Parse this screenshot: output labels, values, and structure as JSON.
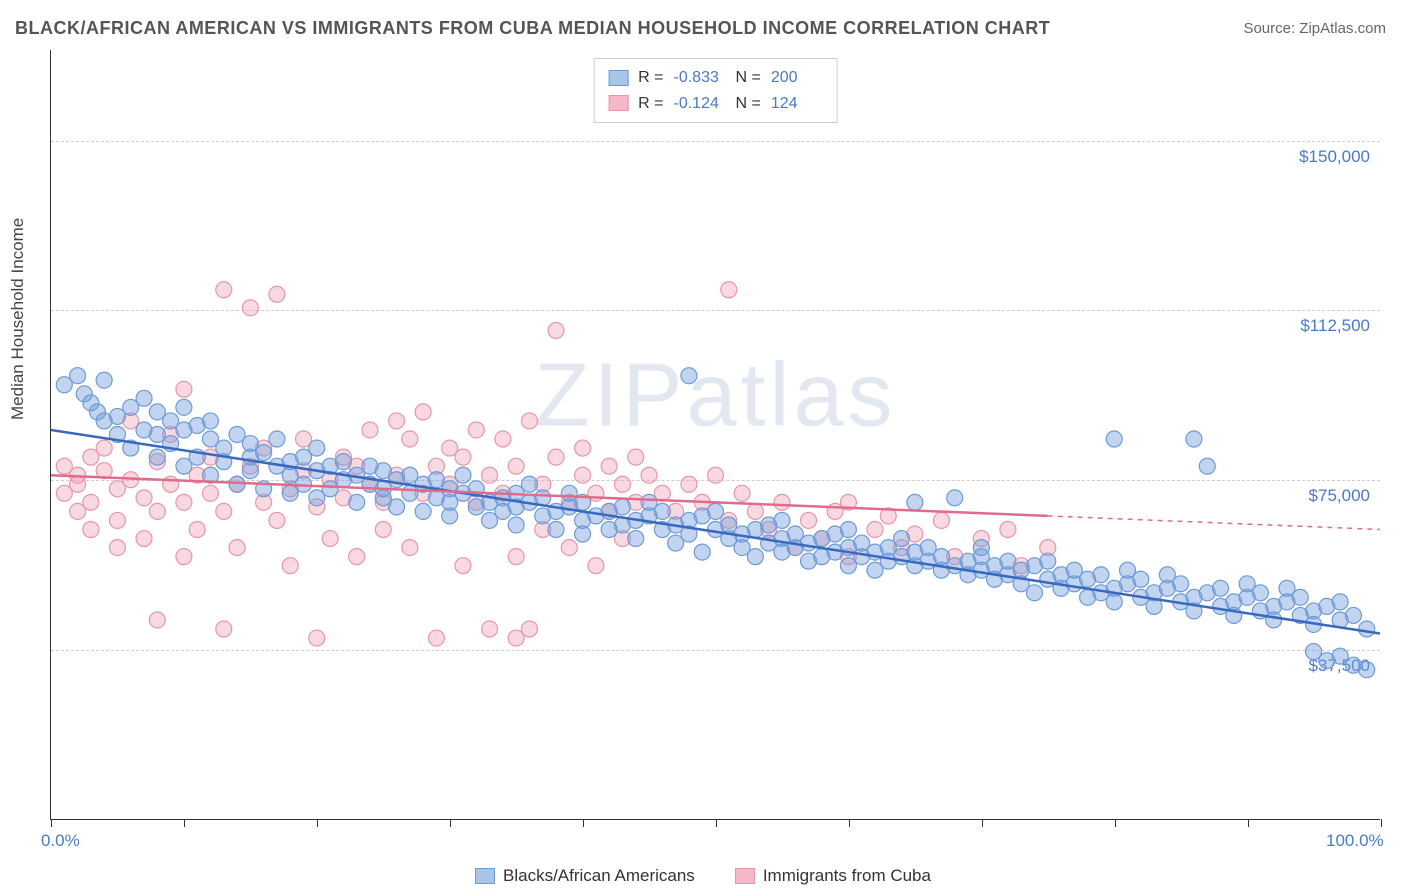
{
  "title": "BLACK/AFRICAN AMERICAN VS IMMIGRANTS FROM CUBA MEDIAN HOUSEHOLD INCOME CORRELATION CHART",
  "source": "Source: ZipAtlas.com",
  "watermark": "ZIPatlas",
  "ylabel": "Median Household Income",
  "chart": {
    "type": "scatter",
    "xlim": [
      0,
      100
    ],
    "ylim": [
      0,
      170000
    ],
    "x_tick_positions": [
      0,
      10,
      20,
      30,
      40,
      50,
      60,
      70,
      80,
      90,
      100
    ],
    "x_tick_labels_shown": {
      "0": "0.0%",
      "100": "100.0%"
    },
    "y_grid_positions": [
      37500,
      75000,
      112500,
      150000
    ],
    "y_tick_labels": {
      "37500": "$37,500",
      "75000": "$75,000",
      "112500": "$112,500",
      "150000": "$150,000"
    },
    "grid_color": "#cccccc",
    "axis_label_color": "#4a7ac7",
    "background_color": "#ffffff",
    "marker_radius": 8,
    "marker_stroke_width": 1.2,
    "trendline_width": 2.5
  },
  "series": [
    {
      "name": "Blacks/African Americans",
      "fill_color": "rgba(120,160,220,0.45)",
      "stroke_color": "#6b9bd8",
      "solid_fill": "#a8c5e8",
      "solid_stroke": "#6b9bd8",
      "line_color": "#3968c0",
      "r": "-0.833",
      "n": "200",
      "trend": {
        "x1": 0,
        "y1": 86000,
        "x2": 100,
        "y2": 41000
      },
      "points": [
        [
          1,
          96000
        ],
        [
          2,
          98000
        ],
        [
          2.5,
          94000
        ],
        [
          3,
          92000
        ],
        [
          3.5,
          90000
        ],
        [
          4,
          97000
        ],
        [
          4,
          88000
        ],
        [
          5,
          89000
        ],
        [
          5,
          85000
        ],
        [
          6,
          91000
        ],
        [
          6,
          82000
        ],
        [
          7,
          93000
        ],
        [
          7,
          86000
        ],
        [
          8,
          90000
        ],
        [
          8,
          80000
        ],
        [
          8,
          85000
        ],
        [
          9,
          88000
        ],
        [
          9,
          83000
        ],
        [
          10,
          86000
        ],
        [
          10,
          78000
        ],
        [
          10,
          91000
        ],
        [
          11,
          87000
        ],
        [
          11,
          80000
        ],
        [
          12,
          84000
        ],
        [
          12,
          76000
        ],
        [
          12,
          88000
        ],
        [
          13,
          82000
        ],
        [
          13,
          79000
        ],
        [
          14,
          85000
        ],
        [
          14,
          74000
        ],
        [
          15,
          80000
        ],
        [
          15,
          77000
        ],
        [
          15,
          83000
        ],
        [
          16,
          81000
        ],
        [
          16,
          73000
        ],
        [
          17,
          78000
        ],
        [
          17,
          84000
        ],
        [
          18,
          79000
        ],
        [
          18,
          72000
        ],
        [
          18,
          76000
        ],
        [
          19,
          80000
        ],
        [
          19,
          74000
        ],
        [
          20,
          77000
        ],
        [
          20,
          71000
        ],
        [
          20,
          82000
        ],
        [
          21,
          78000
        ],
        [
          21,
          73000
        ],
        [
          22,
          75000
        ],
        [
          22,
          79000
        ],
        [
          23,
          76000
        ],
        [
          23,
          70000
        ],
        [
          24,
          74000
        ],
        [
          24,
          78000
        ],
        [
          25,
          77000
        ],
        [
          25,
          71000
        ],
        [
          25,
          73000
        ],
        [
          26,
          75000
        ],
        [
          26,
          69000
        ],
        [
          27,
          72000
        ],
        [
          27,
          76000
        ],
        [
          28,
          74000
        ],
        [
          28,
          68000
        ],
        [
          29,
          71000
        ],
        [
          29,
          75000
        ],
        [
          30,
          73000
        ],
        [
          30,
          67000
        ],
        [
          30,
          70000
        ],
        [
          31,
          72000
        ],
        [
          31,
          76000
        ],
        [
          32,
          69000
        ],
        [
          32,
          73000
        ],
        [
          33,
          70000
        ],
        [
          33,
          66000
        ],
        [
          34,
          71000
        ],
        [
          34,
          68000
        ],
        [
          35,
          72000
        ],
        [
          35,
          65000
        ],
        [
          35,
          69000
        ],
        [
          36,
          70000
        ],
        [
          36,
          74000
        ],
        [
          37,
          67000
        ],
        [
          37,
          71000
        ],
        [
          38,
          68000
        ],
        [
          38,
          64000
        ],
        [
          39,
          69000
        ],
        [
          39,
          72000
        ],
        [
          40,
          66000
        ],
        [
          40,
          70000
        ],
        [
          40,
          63000
        ],
        [
          41,
          67000
        ],
        [
          42,
          68000
        ],
        [
          42,
          64000
        ],
        [
          43,
          65000
        ],
        [
          43,
          69000
        ],
        [
          44,
          66000
        ],
        [
          44,
          62000
        ],
        [
          45,
          67000
        ],
        [
          45,
          70000
        ],
        [
          46,
          64000
        ],
        [
          46,
          68000
        ],
        [
          47,
          65000
        ],
        [
          47,
          61000
        ],
        [
          48,
          66000
        ],
        [
          48,
          63000
        ],
        [
          48,
          98000
        ],
        [
          49,
          67000
        ],
        [
          49,
          59000
        ],
        [
          50,
          64000
        ],
        [
          50,
          68000
        ],
        [
          51,
          62000
        ],
        [
          51,
          65000
        ],
        [
          52,
          63000
        ],
        [
          52,
          60000
        ],
        [
          53,
          64000
        ],
        [
          53,
          58000
        ],
        [
          54,
          61000
        ],
        [
          54,
          65000
        ],
        [
          55,
          62000
        ],
        [
          55,
          59000
        ],
        [
          55,
          66000
        ],
        [
          56,
          60000
        ],
        [
          56,
          63000
        ],
        [
          57,
          61000
        ],
        [
          57,
          57000
        ],
        [
          58,
          62000
        ],
        [
          58,
          58000
        ],
        [
          59,
          59000
        ],
        [
          59,
          63000
        ],
        [
          60,
          60000
        ],
        [
          60,
          56000
        ],
        [
          60,
          64000
        ],
        [
          61,
          58000
        ],
        [
          61,
          61000
        ],
        [
          62,
          59000
        ],
        [
          62,
          55000
        ],
        [
          63,
          60000
        ],
        [
          63,
          57000
        ],
        [
          64,
          58000
        ],
        [
          64,
          62000
        ],
        [
          65,
          56000
        ],
        [
          65,
          59000
        ],
        [
          65,
          70000
        ],
        [
          66,
          57000
        ],
        [
          66,
          60000
        ],
        [
          67,
          55000
        ],
        [
          67,
          58000
        ],
        [
          68,
          56000
        ],
        [
          68,
          71000
        ],
        [
          69,
          57000
        ],
        [
          69,
          54000
        ],
        [
          70,
          55000
        ],
        [
          70,
          58000
        ],
        [
          70,
          60000
        ],
        [
          71,
          56000
        ],
        [
          71,
          53000
        ],
        [
          72,
          54000
        ],
        [
          72,
          57000
        ],
        [
          73,
          55000
        ],
        [
          73,
          52000
        ],
        [
          74,
          56000
        ],
        [
          74,
          50000
        ],
        [
          75,
          53000
        ],
        [
          75,
          57000
        ],
        [
          76,
          54000
        ],
        [
          76,
          51000
        ],
        [
          77,
          52000
        ],
        [
          77,
          55000
        ],
        [
          78,
          53000
        ],
        [
          78,
          49000
        ],
        [
          79,
          50000
        ],
        [
          79,
          54000
        ],
        [
          80,
          51000
        ],
        [
          80,
          48000
        ],
        [
          80,
          84000
        ],
        [
          81,
          52000
        ],
        [
          81,
          55000
        ],
        [
          82,
          49000
        ],
        [
          82,
          53000
        ],
        [
          83,
          50000
        ],
        [
          83,
          47000
        ],
        [
          84,
          51000
        ],
        [
          84,
          54000
        ],
        [
          85,
          48000
        ],
        [
          85,
          52000
        ],
        [
          86,
          49000
        ],
        [
          86,
          46000
        ],
        [
          86,
          84000
        ],
        [
          87,
          50000
        ],
        [
          87,
          78000
        ],
        [
          88,
          47000
        ],
        [
          88,
          51000
        ],
        [
          89,
          48000
        ],
        [
          89,
          45000
        ],
        [
          90,
          49000
        ],
        [
          90,
          52000
        ],
        [
          91,
          46000
        ],
        [
          91,
          50000
        ],
        [
          92,
          47000
        ],
        [
          92,
          44000
        ],
        [
          93,
          48000
        ],
        [
          93,
          51000
        ],
        [
          94,
          45000
        ],
        [
          94,
          49000
        ],
        [
          95,
          46000
        ],
        [
          95,
          43000
        ],
        [
          95,
          37000
        ],
        [
          96,
          47000
        ],
        [
          96,
          35000
        ],
        [
          97,
          44000
        ],
        [
          97,
          48000
        ],
        [
          97,
          36000
        ],
        [
          98,
          45000
        ],
        [
          98,
          34000
        ],
        [
          99,
          42000
        ],
        [
          99,
          33000
        ]
      ]
    },
    {
      "name": "Immigrants from Cuba",
      "fill_color": "rgba(240,160,180,0.4)",
      "stroke_color": "#e895aa",
      "solid_fill": "#f5b8c8",
      "solid_stroke": "#e895aa",
      "line_color": "#e06b8a",
      "r": "-0.124",
      "n": "124",
      "trend": {
        "x1": 0,
        "y1": 76000,
        "x2": 75,
        "y2": 67000,
        "dash_x2": 100,
        "dash_y2": 64000
      },
      "points": [
        [
          1,
          78000
        ],
        [
          1,
          72000
        ],
        [
          2,
          76000
        ],
        [
          2,
          68000
        ],
        [
          2,
          74000
        ],
        [
          3,
          80000
        ],
        [
          3,
          70000
        ],
        [
          3,
          64000
        ],
        [
          4,
          77000
        ],
        [
          4,
          82000
        ],
        [
          5,
          73000
        ],
        [
          5,
          66000
        ],
        [
          5,
          60000
        ],
        [
          6,
          75000
        ],
        [
          6,
          88000
        ],
        [
          7,
          71000
        ],
        [
          7,
          62000
        ],
        [
          8,
          79000
        ],
        [
          8,
          68000
        ],
        [
          8,
          44000
        ],
        [
          9,
          74000
        ],
        [
          9,
          85000
        ],
        [
          10,
          95000
        ],
        [
          10,
          70000
        ],
        [
          10,
          58000
        ],
        [
          11,
          76000
        ],
        [
          11,
          64000
        ],
        [
          12,
          72000
        ],
        [
          12,
          80000
        ],
        [
          13,
          117000
        ],
        [
          13,
          68000
        ],
        [
          13,
          42000
        ],
        [
          14,
          74000
        ],
        [
          14,
          60000
        ],
        [
          15,
          78000
        ],
        [
          15,
          113000
        ],
        [
          16,
          70000
        ],
        [
          16,
          82000
        ],
        [
          17,
          116000
        ],
        [
          17,
          66000
        ],
        [
          18,
          73000
        ],
        [
          18,
          56000
        ],
        [
          19,
          77000
        ],
        [
          19,
          84000
        ],
        [
          20,
          69000
        ],
        [
          20,
          40000
        ],
        [
          21,
          75000
        ],
        [
          21,
          62000
        ],
        [
          22,
          71000
        ],
        [
          22,
          80000
        ],
        [
          23,
          78000
        ],
        [
          23,
          58000
        ],
        [
          24,
          74000
        ],
        [
          24,
          86000
        ],
        [
          25,
          70000
        ],
        [
          25,
          64000
        ],
        [
          26,
          76000
        ],
        [
          26,
          88000
        ],
        [
          27,
          84000
        ],
        [
          27,
          60000
        ],
        [
          28,
          72000
        ],
        [
          28,
          90000
        ],
        [
          29,
          78000
        ],
        [
          29,
          40000
        ],
        [
          30,
          74000
        ],
        [
          30,
          82000
        ],
        [
          31,
          80000
        ],
        [
          31,
          56000
        ],
        [
          32,
          70000
        ],
        [
          32,
          86000
        ],
        [
          33,
          76000
        ],
        [
          33,
          42000
        ],
        [
          34,
          72000
        ],
        [
          34,
          84000
        ],
        [
          35,
          78000
        ],
        [
          35,
          58000
        ],
        [
          35,
          40000
        ],
        [
          36,
          88000
        ],
        [
          36,
          42000
        ],
        [
          37,
          74000
        ],
        [
          37,
          64000
        ],
        [
          38,
          80000
        ],
        [
          38,
          108000
        ],
        [
          39,
          70000
        ],
        [
          39,
          60000
        ],
        [
          40,
          76000
        ],
        [
          40,
          82000
        ],
        [
          41,
          72000
        ],
        [
          41,
          56000
        ],
        [
          42,
          78000
        ],
        [
          42,
          68000
        ],
        [
          43,
          74000
        ],
        [
          43,
          62000
        ],
        [
          44,
          70000
        ],
        [
          44,
          80000
        ],
        [
          45,
          76000
        ],
        [
          46,
          72000
        ],
        [
          47,
          68000
        ],
        [
          48,
          74000
        ],
        [
          49,
          70000
        ],
        [
          50,
          76000
        ],
        [
          51,
          66000
        ],
        [
          51,
          117000
        ],
        [
          52,
          72000
        ],
        [
          53,
          68000
        ],
        [
          54,
          64000
        ],
        [
          55,
          70000
        ],
        [
          56,
          60000
        ],
        [
          57,
          66000
        ],
        [
          58,
          62000
        ],
        [
          59,
          68000
        ],
        [
          60,
          58000
        ],
        [
          60,
          70000
        ],
        [
          62,
          64000
        ],
        [
          63,
          67000
        ],
        [
          64,
          60000
        ],
        [
          65,
          63000
        ],
        [
          67,
          66000
        ],
        [
          68,
          58000
        ],
        [
          70,
          62000
        ],
        [
          72,
          64000
        ],
        [
          73,
          56000
        ],
        [
          75,
          60000
        ]
      ]
    }
  ]
}
